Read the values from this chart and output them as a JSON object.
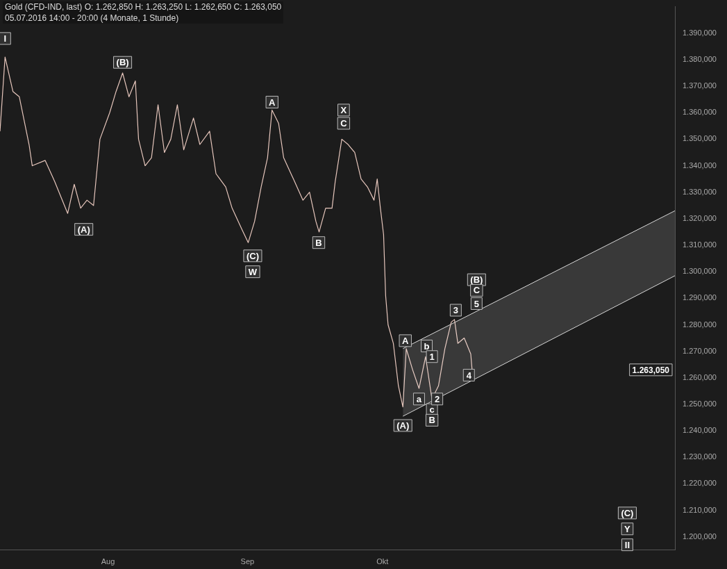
{
  "chart_data": {
    "type": "line",
    "title": "Gold (CFD-IND, last)  O: 1.262,850  H: 1.263,250  L: 1.262,650  C: 1.263,050",
    "subtitle": "05.07.2016 14:00 - 20:00 (4 Monate, 1 Stunde)",
    "xlim": [
      "2016-07-08",
      "2016-12-05"
    ],
    "xticks": [
      {
        "value": "2016-08-01",
        "label": "Aug"
      },
      {
        "value": "2016-09-01",
        "label": "Sep"
      },
      {
        "value": "2016-10-01",
        "label": "Okt"
      }
    ],
    "ylim": [
      1195,
      1400
    ],
    "yticks": [
      {
        "value": 1200,
        "label": "1.200,000"
      },
      {
        "value": 1210,
        "label": "1.210,000"
      },
      {
        "value": 1220,
        "label": "1.220,000"
      },
      {
        "value": 1230,
        "label": "1.230,000"
      },
      {
        "value": 1240,
        "label": "1.240,000"
      },
      {
        "value": 1250,
        "label": "1.250,000"
      },
      {
        "value": 1260,
        "label": "1.260,000"
      },
      {
        "value": 1270,
        "label": "1.270,000"
      },
      {
        "value": 1280,
        "label": "1.280,000"
      },
      {
        "value": 1290,
        "label": "1.290,000"
      },
      {
        "value": 1300,
        "label": "1.300,000"
      },
      {
        "value": 1310,
        "label": "1.310,000"
      },
      {
        "value": 1320,
        "label": "1.320,000"
      },
      {
        "value": 1330,
        "label": "1.330,000"
      },
      {
        "value": 1340,
        "label": "1.340,000"
      },
      {
        "value": 1350,
        "label": "1.350,000"
      },
      {
        "value": 1360,
        "label": "1.360,000"
      },
      {
        "value": 1370,
        "label": "1.370,000"
      },
      {
        "value": 1380,
        "label": "1.380,000"
      },
      {
        "value": 1390,
        "label": "1.390,000"
      }
    ],
    "grid": false,
    "legend": false,
    "marker": "none",
    "line_style": "solid",
    "series": [
      {
        "color": "#e6c6bc",
        "x": [
          "2016-07-08T00:00",
          "2016-07-09T03:00",
          "2016-07-10T21:00",
          "2016-07-12T07:00",
          "2016-07-14T11:00",
          "2016-07-15T04:00",
          "2016-07-18T01:00",
          "2016-07-20T04:00",
          "2016-07-23T01:00",
          "2016-07-24T12:00",
          "2016-07-25T22:00",
          "2016-07-27T08:00",
          "2016-07-28T19:00",
          "2016-07-30T05:00",
          "2016-08-01T09:00",
          "2016-08-02T19:00",
          "2016-08-04T06:00",
          "2016-08-05T16:00",
          "2016-08-07T02:00",
          "2016-08-07T19:00",
          "2016-08-09T06:00",
          "2016-08-10T16:00",
          "2016-08-12T03:00",
          "2016-08-13T13:00",
          "2016-08-14T23:00",
          "2016-08-16T10:00",
          "2016-08-17T20:00",
          "2016-08-20T00:00",
          "2016-08-21T10:00",
          "2016-08-23T14:00",
          "2016-08-25T00:00",
          "2016-08-27T04:00",
          "2016-08-28T14:00",
          "2016-08-30T18:00",
          "2016-09-01T04:00",
          "2016-09-02T14:00",
          "2016-09-04T01:00",
          "2016-09-05T11:00",
          "2016-09-06T11:00",
          "2016-09-07T22:00",
          "2016-09-09T01:00",
          "2016-09-11T05:00",
          "2016-09-13T08:00",
          "2016-09-14T19:00",
          "2016-09-16T05:00",
          "2016-09-16T22:00",
          "2016-09-18T09:00",
          "2016-09-19T19:00",
          "2016-09-20T12:00",
          "2016-09-21T23:00",
          "2016-09-23T09:00",
          "2016-09-24T20:00",
          "2016-09-26T06:00",
          "2016-09-27T16:00",
          "2016-09-29T03:00",
          "2016-09-29T20:00",
          "2016-09-30T13:00",
          "2016-10-01T06:00",
          "2016-10-01T17:00",
          "2016-10-02T06:00",
          "2016-10-03T10:00",
          "2016-10-04T13:00",
          "2016-10-05T13:00",
          "2016-10-06T07:00",
          "2016-10-07T17:00",
          "2016-10-09T03:00",
          "2016-10-10T14:00",
          "2016-10-12T00:00",
          "2016-10-13T11:00",
          "2016-10-14T21:00",
          "2016-10-16T07:00",
          "2016-10-17T00:00",
          "2016-10-17T18:00",
          "2016-10-19T04:00",
          "2016-10-20T15:00",
          "2016-10-20T22:00"
        ],
        "values": [
          1353,
          1381,
          1368,
          1366,
          1348,
          1340,
          1342,
          1334,
          1322,
          1333,
          1324,
          1327,
          1325,
          1350,
          1360,
          1368,
          1375,
          1366,
          1372,
          1350,
          1340,
          1343,
          1363,
          1345,
          1350,
          1363,
          1346,
          1358,
          1348,
          1353,
          1337,
          1332,
          1324,
          1316,
          1311,
          1319,
          1332,
          1343,
          1361,
          1356,
          1343,
          1335,
          1327,
          1330,
          1319,
          1315,
          1324,
          1324,
          1334,
          1350,
          1348,
          1345,
          1335,
          1332,
          1327,
          1335,
          1324,
          1314,
          1291,
          1280,
          1273,
          1257,
          1249,
          1271,
          1263,
          1256,
          1268,
          1252,
          1257,
          1271,
          1281,
          1282,
          1273,
          1275,
          1269,
          1263
        ]
      },
      {
        "color": "#d8d8d8",
        "x": [
          "2016-10-05T13:00",
          "2016-12-05T00:00"
        ],
        "values": [
          1271,
          1323
        ],
        "lower": [
          1245.5,
          1298.5
        ],
        "upper": [
          1271,
          1323
        ]
      }
    ],
    "annotations": [
      {
        "text": "I",
        "x": "2016-07-09T03:00",
        "y": 1388
      },
      {
        "text": "(B)",
        "x": "2016-08-04T06:00",
        "y": 1379
      },
      {
        "text": "(A)",
        "x": "2016-07-26T15:00",
        "y": 1316
      },
      {
        "text": "(C)",
        "x": "2016-09-02T04:00",
        "y": 1306
      },
      {
        "text": "W",
        "x": "2016-09-02T04:00",
        "y": 1300
      },
      {
        "text": "A",
        "x": "2016-09-06T11:00",
        "y": 1364
      },
      {
        "text": "B",
        "x": "2016-09-16T20:00",
        "y": 1311
      },
      {
        "text": "X",
        "x": "2016-09-22T09:00",
        "y": 1361
      },
      {
        "text": "C",
        "x": "2016-09-22T09:00",
        "y": 1356
      },
      {
        "text": "(A)",
        "x": "2016-10-05T13:00",
        "y": 1242
      },
      {
        "text": "A",
        "x": "2016-10-06T02:00",
        "y": 1274
      },
      {
        "text": "a",
        "x": "2016-10-09T03:00",
        "y": 1252
      },
      {
        "text": "b",
        "x": "2016-10-10T20:00",
        "y": 1272
      },
      {
        "text": "1",
        "x": "2016-10-12T00:00",
        "y": 1268
      },
      {
        "text": "c",
        "x": "2016-10-12T00:00",
        "y": 1248
      },
      {
        "text": "B",
        "x": "2016-10-12T00:00",
        "y": 1244
      },
      {
        "text": "2",
        "x": "2016-10-13T04:00",
        "y": 1252
      },
      {
        "text": "3",
        "x": "2016-10-17T07:00",
        "y": 1285.5
      },
      {
        "text": "4",
        "x": "2016-10-20T05:00",
        "y": 1261
      },
      {
        "text": "(B)",
        "x": "2016-10-21T22:00",
        "y": 1297
      },
      {
        "text": "C",
        "x": "2016-10-21T22:00",
        "y": 1293
      },
      {
        "text": "5",
        "x": "2016-10-21T22:00",
        "y": 1288
      },
      {
        "text": "(C)",
        "x": "2016-11-24T10:00",
        "y": 1209
      },
      {
        "text": "Y",
        "x": "2016-11-24T10:00",
        "y": 1203
      },
      {
        "text": "II",
        "x": "2016-11-24T10:00",
        "y": 1197
      },
      "1.263,050"
    ]
  }
}
